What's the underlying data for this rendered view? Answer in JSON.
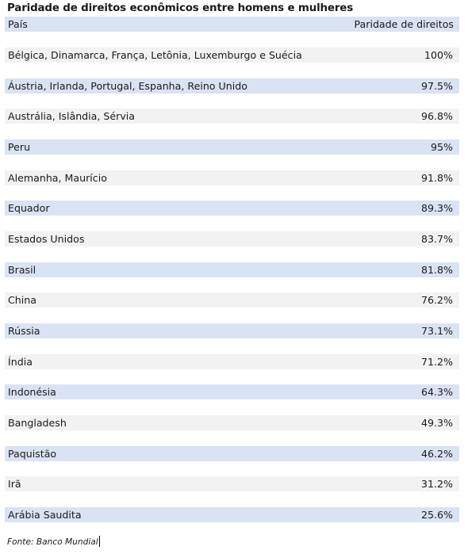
{
  "title": "Paridade de direitos econômicos entre homens e mulheres",
  "table": {
    "headers": {
      "country": "País",
      "value": "Paridade de direitos"
    },
    "rows": [
      {
        "country": "Bélgica, Dinamarca, França, Letônia, Luxemburgo e Suécia",
        "value": "100%"
      },
      {
        "country": "Áustria, Irlanda, Portugal, Espanha, Reino Unido",
        "value": "97.5%"
      },
      {
        "country": "Austrália, Islândia, Sérvia",
        "value": "96.8%"
      },
      {
        "country": "Peru",
        "value": "95%"
      },
      {
        "country": "Alemanha, Maurício",
        "value": "91.8%"
      },
      {
        "country": "Equador",
        "value": "89.3%"
      },
      {
        "country": "Estados Unidos",
        "value": "83.7%"
      },
      {
        "country": "Brasil",
        "value": "81.8%"
      },
      {
        "country": "China",
        "value": "76.2%"
      },
      {
        "country": "Rússia",
        "value": "73.1%"
      },
      {
        "country": "Índia",
        "value": "71.2%"
      },
      {
        "country": "Indonésia",
        "value": "64.3%"
      },
      {
        "country": "Bangladesh",
        "value": "49.3%"
      },
      {
        "country": "Paquistão",
        "value": "46.2%"
      },
      {
        "country": "Irã",
        "value": "31.2%"
      },
      {
        "country": "Arábia Saudita",
        "value": "25.6%"
      }
    ]
  },
  "source": "Fonte: Banco Mundial",
  "colors": {
    "band_blue": "#dae3f3",
    "band_gray": "#f2f2f2"
  }
}
